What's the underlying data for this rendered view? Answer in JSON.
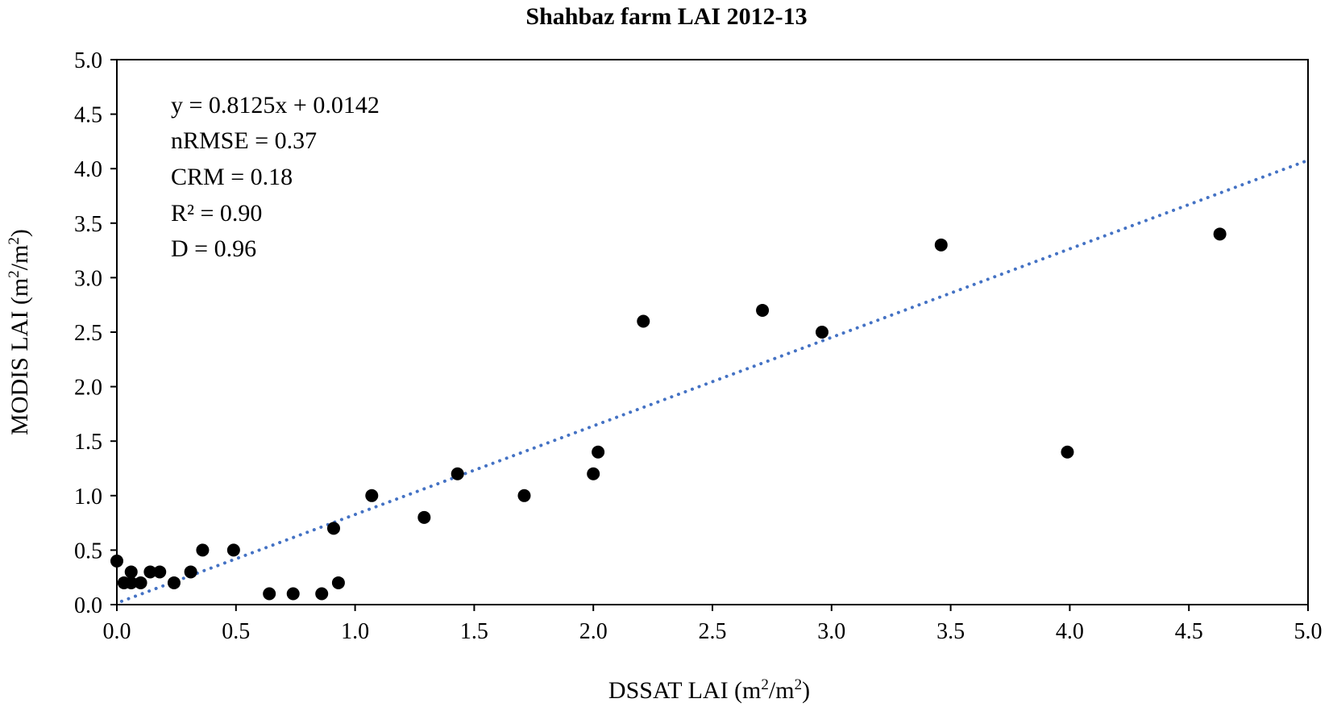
{
  "chart_data": {
    "type": "scatter",
    "title": "Shahbaz farm LAI 2012-13",
    "xlabel": {
      "base": "DSSAT LAI (m",
      "sup1": "2",
      "mid": "/m",
      "sup2": "2",
      "end": ")"
    },
    "ylabel": {
      "base": "MODIS LAI (m",
      "sup1": "2",
      "mid": "/m",
      "sup2": "2",
      "end": ")"
    },
    "xlim": [
      0,
      5
    ],
    "ylim": [
      0,
      5
    ],
    "xticks": [
      "0.0",
      "0.5",
      "1.0",
      "1.5",
      "2.0",
      "2.5",
      "3.0",
      "3.5",
      "4.0",
      "4.5",
      "5.0"
    ],
    "yticks": [
      "0.0",
      "0.5",
      "1.0",
      "1.5",
      "2.0",
      "2.5",
      "3.0",
      "3.5",
      "4.0",
      "4.5",
      "5.0"
    ],
    "series": [
      {
        "name": "LAI",
        "points": [
          [
            0.0,
            0.4
          ],
          [
            0.03,
            0.2
          ],
          [
            0.06,
            0.3
          ],
          [
            0.06,
            0.2
          ],
          [
            0.1,
            0.2
          ],
          [
            0.14,
            0.3
          ],
          [
            0.18,
            0.3
          ],
          [
            0.24,
            0.2
          ],
          [
            0.31,
            0.3
          ],
          [
            0.36,
            0.5
          ],
          [
            0.49,
            0.5
          ],
          [
            0.64,
            0.1
          ],
          [
            0.74,
            0.1
          ],
          [
            0.86,
            0.1
          ],
          [
            0.91,
            0.7
          ],
          [
            0.93,
            0.2
          ],
          [
            1.07,
            1.0
          ],
          [
            1.29,
            0.8
          ],
          [
            1.43,
            1.2
          ],
          [
            1.71,
            1.0
          ],
          [
            2.0,
            1.2
          ],
          [
            2.02,
            1.4
          ],
          [
            2.21,
            2.6
          ],
          [
            2.71,
            2.7
          ],
          [
            2.96,
            2.5
          ],
          [
            3.46,
            3.3
          ],
          [
            3.99,
            1.4
          ],
          [
            4.63,
            3.4
          ]
        ]
      }
    ],
    "trendline": {
      "slope": 0.8125,
      "intercept": 0.0142,
      "x_range": [
        0.02,
        5.0
      ],
      "style": "dotted",
      "color": "#4472C4"
    },
    "marker_color": "#000000",
    "annotations": {
      "equation": "y = 0.8125x + 0.0142",
      "nrmse": "nRMSE =  0.37",
      "crm": "CRM = 0.18",
      "r2": "R² = 0.90",
      "d": "D = 0.96"
    }
  }
}
